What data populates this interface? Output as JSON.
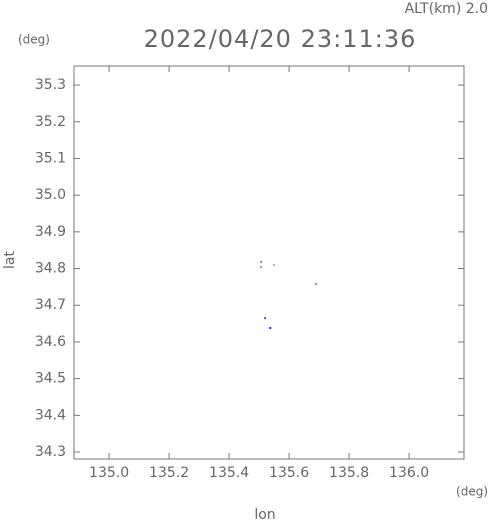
{
  "chart_data": {
    "type": "scatter",
    "title": "2022/04/20 23:11:36",
    "annotation": "ALT(km) 2.0",
    "y_unit": "(deg)",
    "x_unit": "(deg)",
    "x_label": "lon",
    "y_label": "lat",
    "x": [
      135.507,
      135.507,
      135.55,
      135.69,
      135.52,
      135.537
    ],
    "y": [
      34.818,
      34.804,
      34.81,
      34.758,
      34.665,
      34.638
    ],
    "colors": [
      "#8a7fb0",
      "#9a8fb8",
      "#b0a8c8",
      "#9a8fb8",
      "#5050c0",
      "#2030e0"
    ],
    "xlim": [
      134.883,
      136.183
    ],
    "ylim": [
      34.281,
      35.352
    ],
    "xticks": [
      {
        "value": 135.0,
        "label": "135.0"
      },
      135.2,
      135.4,
      135.6,
      135.8,
      {
        "value": 136.0,
        "label": "136.0"
      }
    ],
    "yticks": [
      35.3,
      35.2,
      35.1,
      {
        "value": 35.0,
        "label": "35.0"
      },
      34.9,
      34.8,
      34.7,
      34.6,
      34.5,
      34.4,
      34.3
    ]
  }
}
